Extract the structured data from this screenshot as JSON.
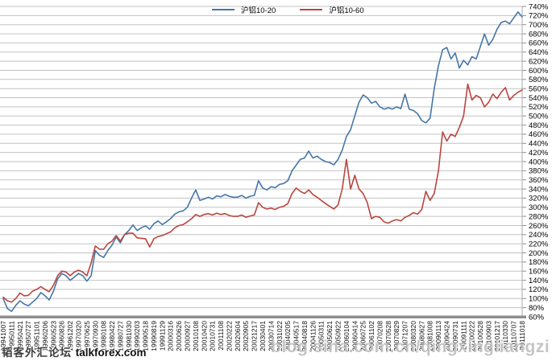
{
  "watermarks": {
    "left_cn": "韬客外汇论坛",
    "left_en": "talkforex.com",
    "right": "blog.sina.com.cn/qingxingliangzi"
  },
  "chart_data": {
    "type": "line",
    "title": "",
    "grid": true,
    "legend_position": "top-center",
    "y_axis": {
      "min": 60,
      "max": 740,
      "step": 20,
      "format": "percent",
      "side": "right",
      "ylim": [
        60,
        740
      ]
    },
    "x_tick_labels": [
      "19941007",
      "19950111",
      "19950421",
      "19950727",
      "19951101",
      "19960206",
      "19960523",
      "19960826",
      "19961202",
      "19970320",
      "19970625",
      "19970930",
      "19980108",
      "19980422",
      "19980727",
      "19981030",
      "19990203",
      "19990518",
      "19990819",
      "19991129",
      "20000316",
      "20000626",
      "20000927",
      "20010108",
      "20010420",
      "20010731",
      "20011108",
      "20020222",
      "20020604",
      "20020905",
      "20021217",
      "20030401",
      "20030714",
      "20031022",
      "20040205",
      "20040517",
      "20040818",
      "20041126",
      "20050311",
      "20050621",
      "20050922",
      "20060104",
      "20060414",
      "20060725",
      "20061102",
      "20070208",
      "20070528",
      "20070829",
      "20071207",
      "20080320",
      "20080627",
      "20081008",
      "20090113",
      "20090424",
      "20090731",
      "20091111",
      "20100222",
      "20100528",
      "20100903",
      "20101217",
      "20110330",
      "20110707",
      "20111018"
    ],
    "x_points_per_tick": 2,
    "series": [
      {
        "name": "沪铝10-20",
        "color": "#4576A8",
        "values": [
          100,
          78,
          72,
          85,
          95,
          88,
          84,
          92,
          100,
          113,
          106,
          97,
          116,
          143,
          155,
          150,
          140,
          147,
          155,
          150,
          138,
          150,
          205,
          195,
          190,
          205,
          217,
          235,
          222,
          240,
          249,
          261,
          249,
          255,
          259,
          252,
          264,
          270,
          262,
          268,
          275,
          285,
          290,
          292,
          300,
          320,
          338,
          315,
          318,
          322,
          318,
          325,
          323,
          328,
          324,
          322,
          322,
          326,
          320,
          324,
          326,
          358,
          342,
          338,
          345,
          343,
          350,
          352,
          358,
          380,
          392,
          405,
          408,
          423,
          408,
          412,
          405,
          400,
          398,
          393,
          405,
          425,
          455,
          470,
          500,
          530,
          546,
          540,
          528,
          532,
          520,
          515,
          518,
          515,
          520,
          516,
          548,
          515,
          512,
          505,
          490,
          485,
          495,
          560,
          610,
          645,
          650,
          625,
          638,
          605,
          622,
          612,
          630,
          625,
          652,
          680,
          655,
          668,
          690,
          705,
          708,
          702,
          715,
          728,
          717
        ]
      },
      {
        "name": "沪铝10-60",
        "color": "#B9463F",
        "values": [
          103,
          95,
          92,
          100,
          112,
          106,
          107,
          116,
          120,
          126,
          120,
          115,
          129,
          150,
          160,
          158,
          150,
          158,
          162,
          158,
          150,
          178,
          215,
          208,
          208,
          220,
          226,
          238,
          226,
          240,
          243,
          243,
          233,
          232,
          231,
          213,
          231,
          236,
          238,
          242,
          246,
          255,
          260,
          262,
          268,
          275,
          284,
          280,
          284,
          286,
          283,
          287,
          284,
          286,
          282,
          280,
          280,
          283,
          278,
          281,
          283,
          310,
          300,
          296,
          298,
          295,
          300,
          302,
          308,
          330,
          342,
          335,
          330,
          338,
          328,
          322,
          315,
          308,
          302,
          296,
          305,
          340,
          405,
          340,
          370,
          340,
          330,
          310,
          275,
          280,
          278,
          268,
          265,
          270,
          273,
          270,
          278,
          282,
          288,
          285,
          295,
          335,
          315,
          330,
          380,
          465,
          445,
          460,
          455,
          475,
          500,
          570,
          535,
          545,
          540,
          520,
          530,
          548,
          538,
          552,
          562,
          535,
          545,
          552,
          557
        ]
      }
    ]
  }
}
